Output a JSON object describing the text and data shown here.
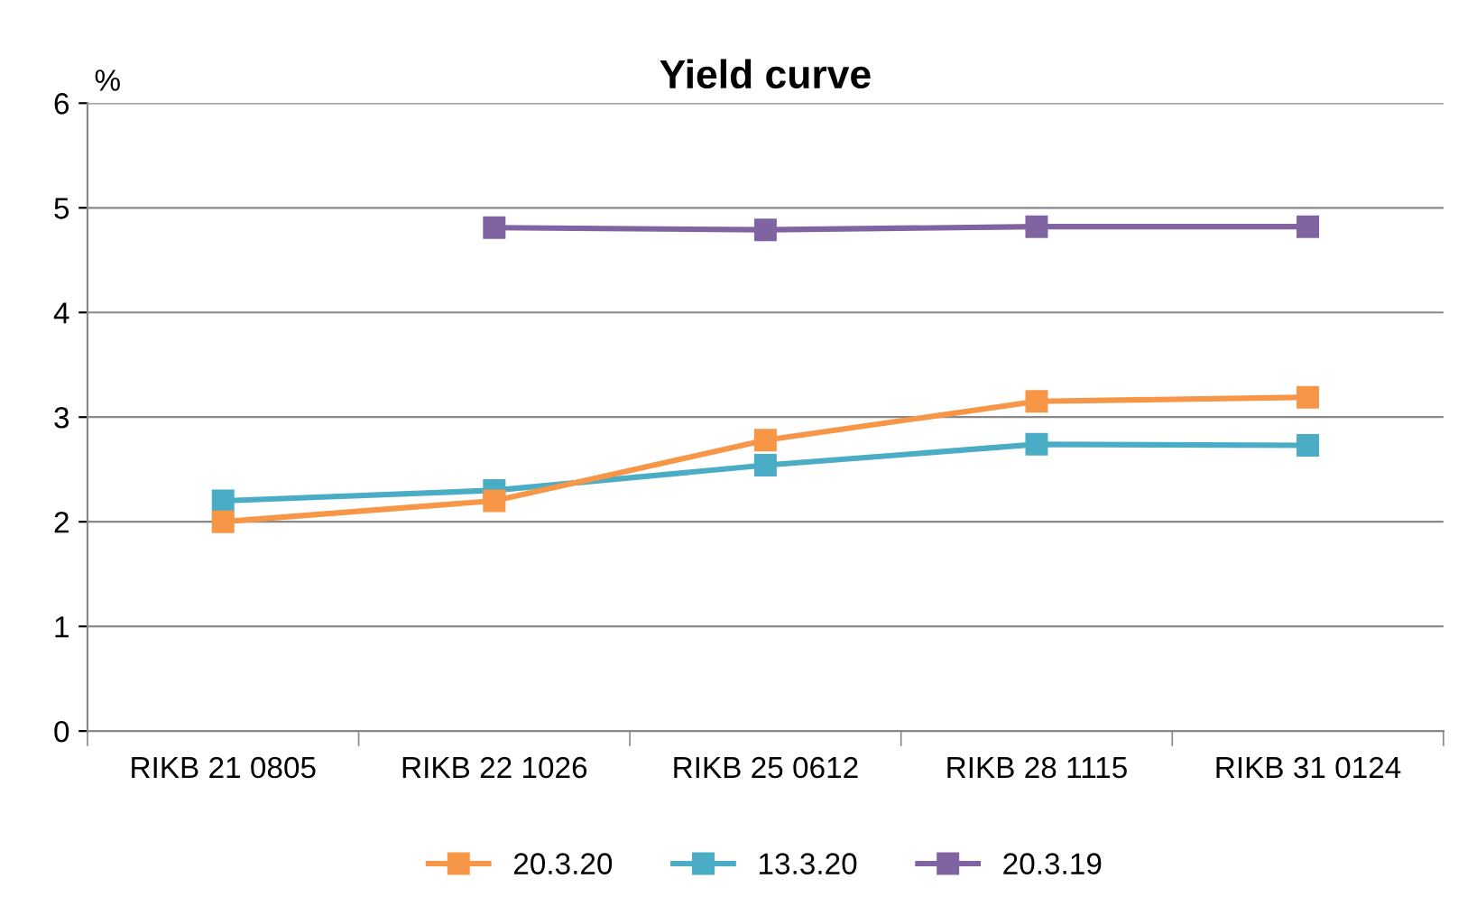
{
  "chart_data": {
    "type": "line",
    "title": "Yield curve",
    "ylabel": "%",
    "categories": [
      "RIKB 21 0805",
      "RIKB 22 1026",
      "RIKB 25 0612",
      "RIKB 28 1115",
      "RIKB 31 0124"
    ],
    "series": [
      {
        "name": "20.3.20",
        "color": "#f79646",
        "values": [
          2.0,
          2.2,
          2.78,
          3.15,
          3.19
        ]
      },
      {
        "name": "13.3.20",
        "color": "#4bacc6",
        "values": [
          2.2,
          2.3,
          2.54,
          2.74,
          2.73
        ]
      },
      {
        "name": "20.3.19",
        "color": "#8064a2",
        "values": [
          null,
          4.81,
          4.79,
          4.82,
          4.82
        ]
      }
    ],
    "ylim": [
      0,
      6
    ],
    "yticks": [
      0,
      1,
      2,
      3,
      4,
      5,
      6
    ],
    "grid": "y",
    "legend": "bottom",
    "marker": "square",
    "line_style": "solid"
  }
}
